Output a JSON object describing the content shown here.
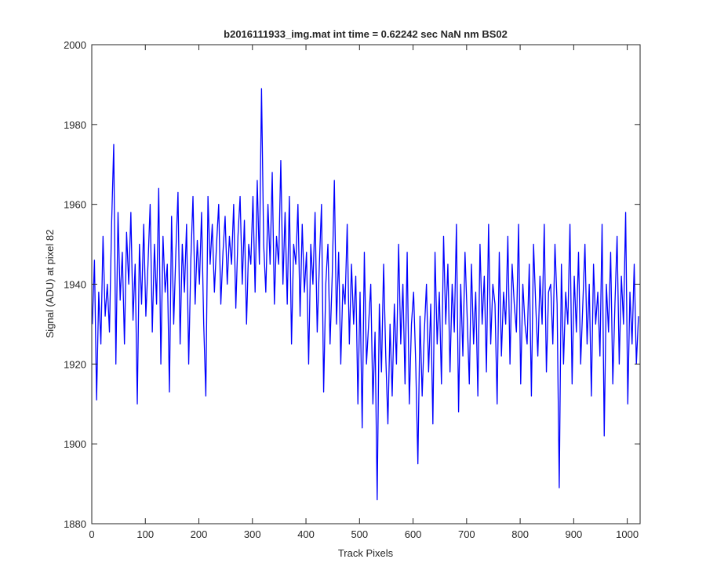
{
  "chart_data": {
    "type": "line",
    "title": "b2016111933_img.mat int time = 0.62242 sec  NaN nm BS02",
    "xlabel": "Track Pixels",
    "ylabel": "Signal (ADU) at pixel 82",
    "color": "#0000ff",
    "xlim": [
      0,
      1024
    ],
    "ylim": [
      1880,
      2000
    ],
    "xticks": [
      0,
      100,
      200,
      300,
      400,
      500,
      600,
      700,
      800,
      900,
      1000
    ],
    "yticks": [
      1880,
      1900,
      1920,
      1940,
      1960,
      1980,
      2000
    ],
    "grid": false,
    "x": [
      1,
      5,
      9,
      13,
      17,
      21,
      25,
      29,
      33,
      37,
      41,
      45,
      49,
      53,
      57,
      61,
      65,
      69,
      73,
      77,
      81,
      85,
      89,
      93,
      97,
      101,
      105,
      109,
      113,
      117,
      121,
      125,
      129,
      133,
      137,
      141,
      145,
      149,
      153,
      157,
      161,
      165,
      169,
      173,
      177,
      181,
      185,
      189,
      193,
      197,
      201,
      205,
      209,
      213,
      217,
      221,
      225,
      229,
      233,
      237,
      241,
      245,
      249,
      253,
      257,
      261,
      265,
      269,
      273,
      277,
      281,
      285,
      289,
      293,
      297,
      301,
      305,
      309,
      313,
      317,
      321,
      325,
      329,
      333,
      337,
      341,
      345,
      349,
      353,
      357,
      361,
      365,
      369,
      373,
      377,
      381,
      385,
      389,
      393,
      397,
      401,
      405,
      409,
      413,
      417,
      421,
      425,
      429,
      433,
      437,
      441,
      445,
      449,
      453,
      457,
      461,
      465,
      469,
      473,
      477,
      481,
      485,
      489,
      493,
      497,
      501,
      505,
      509,
      513,
      517,
      521,
      525,
      529,
      533,
      537,
      541,
      545,
      549,
      553,
      557,
      561,
      565,
      569,
      573,
      577,
      581,
      585,
      589,
      593,
      597,
      601,
      605,
      609,
      613,
      617,
      621,
      625,
      629,
      633,
      637,
      641,
      645,
      649,
      653,
      657,
      661,
      665,
      669,
      673,
      677,
      681,
      685,
      689,
      693,
      697,
      701,
      705,
      709,
      713,
      717,
      721,
      725,
      729,
      733,
      737,
      741,
      745,
      749,
      753,
      757,
      761,
      765,
      769,
      773,
      777,
      781,
      785,
      789,
      793,
      797,
      801,
      805,
      809,
      813,
      817,
      821,
      825,
      829,
      833,
      837,
      841,
      845,
      849,
      853,
      857,
      861,
      865,
      869,
      873,
      877,
      881,
      885,
      889,
      893,
      897,
      901,
      905,
      909,
      913,
      917,
      921,
      925,
      929,
      933,
      937,
      941,
      945,
      949,
      953,
      957,
      961,
      965,
      969,
      973,
      977,
      981,
      985,
      989,
      993,
      997,
      1001,
      1005,
      1009,
      1013,
      1017,
      1021
    ],
    "values": [
      1930,
      1946,
      1911,
      1938,
      1925,
      1952,
      1932,
      1940,
      1928,
      1955,
      1975,
      1920,
      1958,
      1936,
      1948,
      1925,
      1953,
      1940,
      1958,
      1931,
      1945,
      1910,
      1950,
      1935,
      1955,
      1932,
      1945,
      1960,
      1928,
      1950,
      1935,
      1964,
      1920,
      1952,
      1938,
      1945,
      1913,
      1957,
      1930,
      1948,
      1963,
      1925,
      1950,
      1938,
      1955,
      1920,
      1946,
      1962,
      1935,
      1951,
      1940,
      1958,
      1930,
      1912,
      1962,
      1945,
      1955,
      1938,
      1950,
      1960,
      1935,
      1948,
      1957,
      1940,
      1952,
      1945,
      1960,
      1934,
      1952,
      1962,
      1940,
      1956,
      1930,
      1950,
      1945,
      1962,
      1938,
      1966,
      1945,
      1989,
      1950,
      1938,
      1960,
      1945,
      1968,
      1935,
      1952,
      1945,
      1971,
      1940,
      1958,
      1935,
      1962,
      1925,
      1950,
      1945,
      1960,
      1932,
      1955,
      1938,
      1948,
      1920,
      1950,
      1940,
      1958,
      1928,
      1945,
      1960,
      1913,
      1940,
      1950,
      1925,
      1942,
      1966,
      1930,
      1948,
      1920,
      1940,
      1935,
      1955,
      1925,
      1945,
      1930,
      1942,
      1910,
      1938,
      1904,
      1948,
      1920,
      1930,
      1940,
      1910,
      1928,
      1886,
      1935,
      1918,
      1945,
      1922,
      1905,
      1930,
      1912,
      1935,
      1920,
      1950,
      1925,
      1940,
      1915,
      1948,
      1910,
      1930,
      1938,
      1920,
      1895,
      1932,
      1912,
      1928,
      1940,
      1918,
      1935,
      1905,
      1948,
      1925,
      1938,
      1915,
      1952,
      1930,
      1945,
      1918,
      1940,
      1928,
      1955,
      1908,
      1940,
      1922,
      1948,
      1932,
      1915,
      1945,
      1925,
      1938,
      1912,
      1950,
      1930,
      1942,
      1918,
      1955,
      1925,
      1940,
      1935,
      1910,
      1948,
      1922,
      1938,
      1930,
      1952,
      1920,
      1945,
      1935,
      1928,
      1955,
      1915,
      1940,
      1930,
      1925,
      1945,
      1912,
      1950,
      1935,
      1922,
      1942,
      1930,
      1955,
      1918,
      1938,
      1940,
      1925,
      1950,
      1935,
      1889,
      1945,
      1920,
      1938,
      1930,
      1955,
      1915,
      1942,
      1928,
      1948,
      1920,
      1935,
      1950,
      1925,
      1940,
      1912,
      1945,
      1930,
      1938,
      1922,
      1955,
      1902,
      1940,
      1928,
      1948,
      1915,
      1935,
      1952,
      1920,
      1942,
      1930,
      1958,
      1910,
      1938,
      1925,
      1945,
      1920,
      1932
    ]
  }
}
